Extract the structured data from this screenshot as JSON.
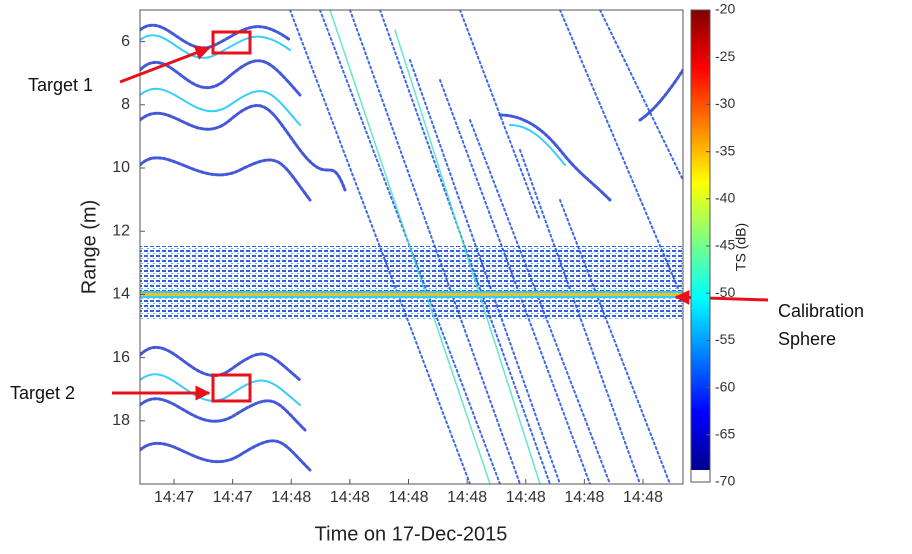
{
  "chart_data": {
    "type": "heatmap",
    "xlabel": "Time on 17-Dec-2015",
    "ylabel": "Range (m)",
    "ylim": [
      5,
      20
    ],
    "y_inverted": true,
    "yticks": [
      6,
      8,
      10,
      12,
      14,
      16,
      18
    ],
    "xticks": [
      "14:47",
      "14:47",
      "14:48",
      "14:48",
      "14:48",
      "14:48",
      "14:48",
      "14:48",
      "14:48"
    ],
    "colorbar": {
      "label": "TS (dB)",
      "clim": [
        -70,
        -20
      ],
      "ticks": [
        -20,
        -25,
        -30,
        -35,
        -40,
        -45,
        -50,
        -55,
        -60,
        -65,
        -70
      ],
      "colormap": "jet"
    },
    "annotations": [
      {
        "text": "Target 1"
      },
      {
        "text": "Target 2"
      },
      {
        "lines": [
          "Calibration",
          "Sphere"
        ]
      }
    ]
  }
}
